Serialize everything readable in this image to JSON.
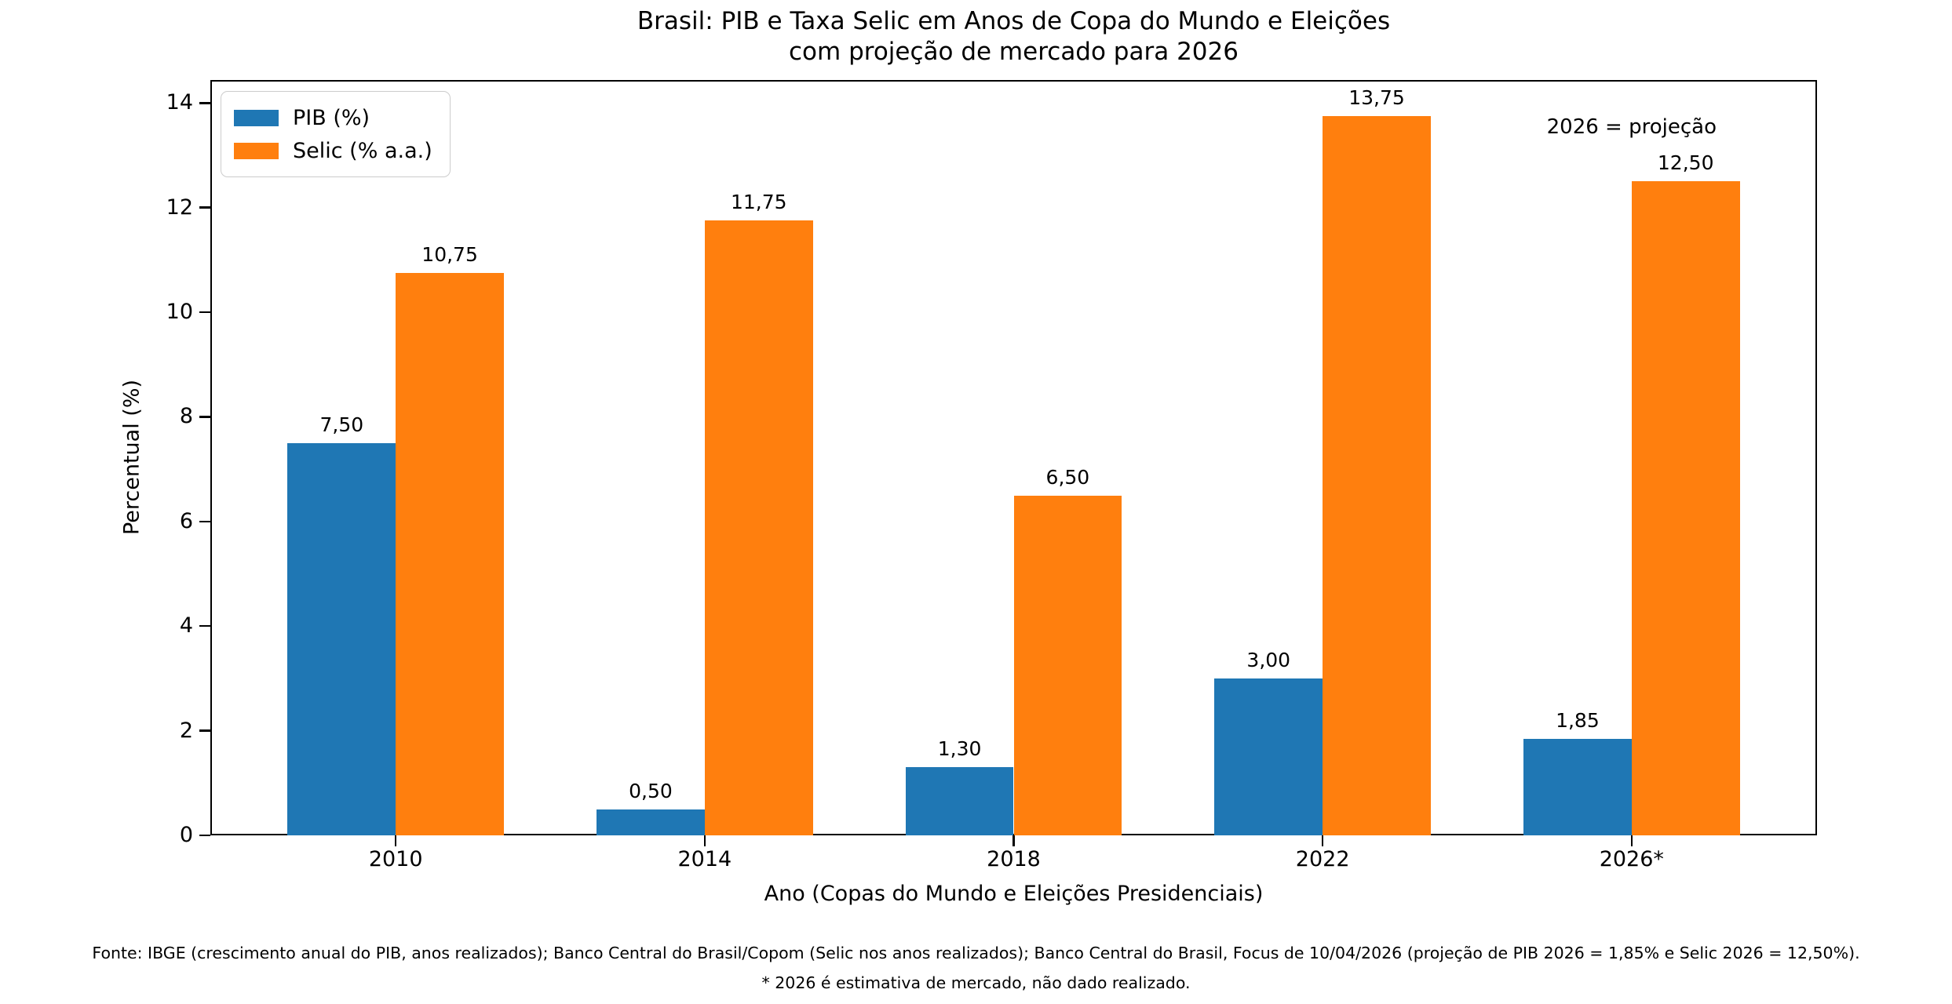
{
  "title": {
    "line1": "Brasil: PIB e Taxa Selic em Anos de Copa do Mundo e Eleições",
    "line2": "com projeção de mercado para 2026"
  },
  "chart_data": {
    "type": "bar",
    "title": "Brasil: PIB e Taxa Selic em Anos de Copa do Mundo e Eleições com projeção de mercado para 2026",
    "categories": [
      "2010",
      "2014",
      "2018",
      "2022",
      "2026*"
    ],
    "series": [
      {
        "name": "PIB (%)",
        "color": "#1f77b4",
        "values": [
          7.5,
          0.5,
          1.3,
          3.0,
          1.85
        ],
        "value_labels": [
          "7,50",
          "0,50",
          "1,30",
          "3,00",
          "1,85"
        ]
      },
      {
        "name": "Selic (% a.a.)",
        "color": "#ff7f0e",
        "values": [
          10.75,
          11.75,
          6.5,
          13.75,
          12.5
        ],
        "value_labels": [
          "10,75",
          "11,75",
          "6,50",
          "13,75",
          "12,50"
        ]
      }
    ],
    "xlabel": "Ano (Copas do Mundo e Eleições Presidenciais)",
    "ylabel": "Percentual (%)",
    "ylim": [
      0,
      14.44
    ],
    "xlim": [
      -0.6,
      4.6
    ],
    "yticks": [
      0,
      2,
      4,
      6,
      8,
      10,
      12,
      14
    ],
    "ytick_labels": [
      "0",
      "2",
      "4",
      "6",
      "8",
      "10",
      "12",
      "14"
    ],
    "bar_width": 0.35,
    "grid": false,
    "legend_position": "upper left",
    "annotation": "2026 = projeção"
  },
  "footer": {
    "line1": "Fonte: IBGE (crescimento anual do PIB, anos realizados); Banco Central do Brasil/Copom (Selic nos anos realizados); Banco Central do Brasil, Focus de 10/04/2026 (projeção de PIB 2026 = 1,85% e Selic 2026 = 12,50%).",
    "line2": "* 2026 é estimativa de mercado, não dado realizado."
  }
}
